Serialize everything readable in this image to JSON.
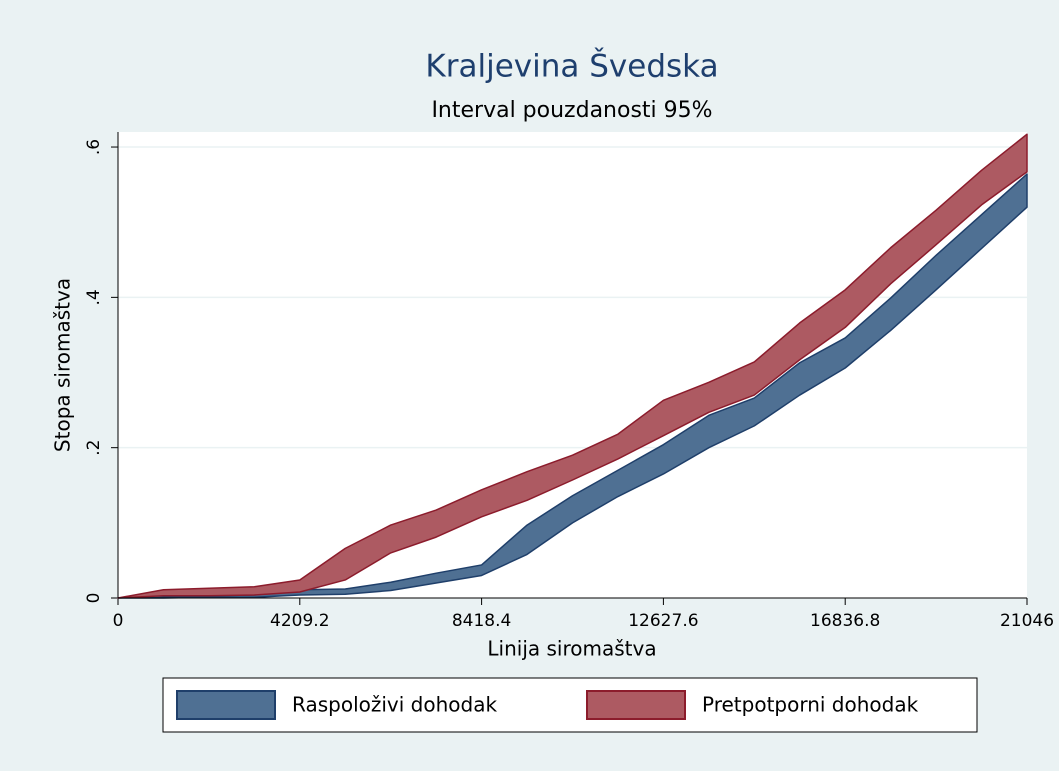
{
  "chart_data": {
    "type": "rangearea",
    "title": "Kraljevina Švedska",
    "subtitle": "Interval pouzdanosti 95%",
    "x_label": "Linija siromaštva",
    "y_label": "Stopa siromaštva",
    "x": [
      0,
      1052.3,
      2104.6,
      3156.9,
      4209.2,
      5261.5,
      6313.8,
      7366.1,
      8418.4,
      9470.7,
      10523,
      11575.3,
      12627.6,
      13679.9,
      14732.2,
      15784.5,
      16836.8,
      17889.1,
      18941.4,
      19993.7,
      21046
    ],
    "series": [
      {
        "name": "Raspoloživi dohodak",
        "color": "#4f7093",
        "stroke": "#1f3f6a",
        "lower": [
          0,
          0,
          0.001,
          0.001,
          0.004,
          0.005,
          0.01,
          0.02,
          0.03,
          0.058,
          0.1,
          0.135,
          0.165,
          0.2,
          0.229,
          0.27,
          0.306,
          0.356,
          0.41,
          0.465,
          0.52
        ],
        "upper": [
          0,
          0.001,
          0.003,
          0.004,
          0.011,
          0.012,
          0.021,
          0.033,
          0.044,
          0.097,
          0.136,
          0.17,
          0.204,
          0.243,
          0.266,
          0.313,
          0.346,
          0.399,
          0.456,
          0.51,
          0.564
        ]
      },
      {
        "name": "Pretpotporni dohodak",
        "color": "#ad5a62",
        "stroke": "#8c1c2c",
        "lower": [
          0,
          0.003,
          0.003,
          0.004,
          0.008,
          0.024,
          0.06,
          0.081,
          0.108,
          0.13,
          0.157,
          0.185,
          0.216,
          0.247,
          0.27,
          0.317,
          0.36,
          0.418,
          0.47,
          0.523,
          0.567
        ],
        "upper": [
          0,
          0.011,
          0.013,
          0.015,
          0.024,
          0.066,
          0.097,
          0.117,
          0.144,
          0.168,
          0.19,
          0.218,
          0.263,
          0.287,
          0.314,
          0.366,
          0.41,
          0.466,
          0.516,
          0.569,
          0.617
        ]
      }
    ],
    "xlim": [
      0,
      21046
    ],
    "xticks": [
      0,
      4209.2,
      8418.4,
      12627.6,
      16836.8,
      21046
    ],
    "ylim": [
      0,
      0.62
    ],
    "yticks": [
      0,
      {
        "value": 0.2,
        "label": ".2"
      },
      {
        "value": 0.4,
        "label": ".4"
      },
      {
        "value": 0.6,
        "label": ".6"
      }
    ],
    "grid": true,
    "legend": "bottom"
  }
}
